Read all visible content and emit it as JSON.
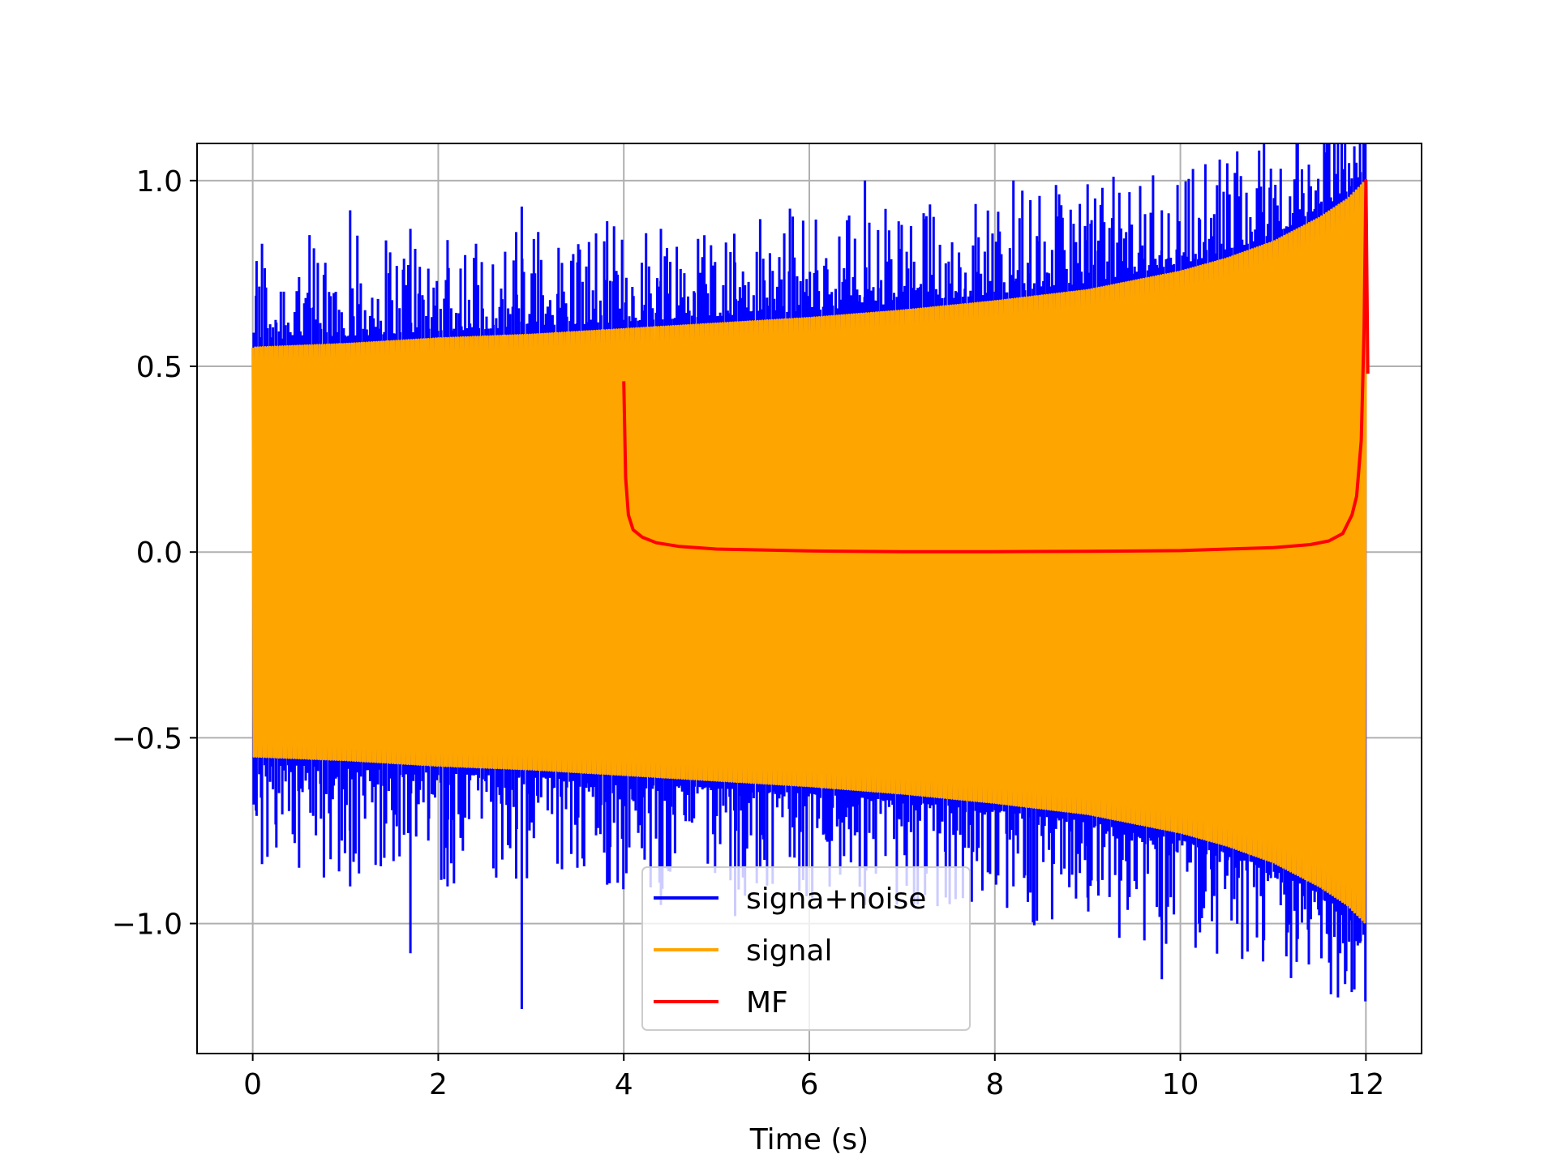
{
  "chart_data": {
    "type": "line",
    "title": "",
    "xlabel": "Time (s)",
    "ylabel": "",
    "xlim": [
      -0.6,
      12.6
    ],
    "ylim": [
      -1.35,
      1.1
    ],
    "xticks": [
      0,
      2,
      4,
      6,
      8,
      10,
      12
    ],
    "xtick_labels": [
      "0",
      "2",
      "4",
      "6",
      "8",
      "10",
      "12"
    ],
    "yticks": [
      -1.0,
      -0.5,
      0.0,
      0.5,
      1.0
    ],
    "ytick_labels": [
      "−1.0",
      "−0.5",
      "0.0",
      "0.5",
      "1.0"
    ],
    "grid": true,
    "legend_position": "lower-center",
    "series": [
      {
        "name": "signa+noise",
        "color": "#0000ff",
        "description": "signal with additive noise spikes from t=0 to t=12 s",
        "x_range": [
          0,
          12
        ],
        "spike_samples": [
          [
            0.1,
            0.83,
            -0.84
          ],
          [
            0.5,
            0.74,
            -0.85
          ],
          [
            1.05,
            0.92,
            -0.9
          ],
          [
            1.7,
            0.87,
            -1.08
          ],
          [
            2.1,
            0.84,
            -0.9
          ],
          [
            2.9,
            0.93,
            -1.23
          ],
          [
            3.5,
            0.78,
            -0.85
          ],
          [
            4.4,
            0.87,
            -0.95
          ],
          [
            5.2,
            0.78,
            -0.98
          ],
          [
            6.6,
            1.0,
            -0.95
          ],
          [
            8.2,
            1.0,
            -0.9
          ],
          [
            9.0,
            0.99,
            -0.93
          ],
          [
            9.8,
            0.92,
            -1.15
          ],
          [
            10.2,
            0.9,
            -1.0
          ],
          [
            11.6,
            0.88,
            -1.03
          ]
        ]
      },
      {
        "name": "signal",
        "color": "#ffa500",
        "description": "oscillating chirp whose envelope grows from 0.55 to 1.0",
        "x": [
          0,
          1,
          2,
          3,
          4,
          5,
          6,
          7,
          8,
          9,
          10,
          10.5,
          11,
          11.5,
          11.8,
          12
        ],
        "envelope": [
          0.55,
          0.56,
          0.575,
          0.585,
          0.6,
          0.615,
          0.63,
          0.65,
          0.675,
          0.705,
          0.755,
          0.79,
          0.835,
          0.9,
          0.95,
          1.0
        ]
      },
      {
        "name": "MF",
        "color": "#ff0000",
        "description": "matched filter output from t=4 to t=12 s",
        "x": [
          4.0,
          4.02,
          4.05,
          4.1,
          4.2,
          4.35,
          4.6,
          5.0,
          6.0,
          7.0,
          8.0,
          9.0,
          10.0,
          11.0,
          11.4,
          11.6,
          11.75,
          11.85,
          11.9,
          11.95,
          11.98,
          12.0,
          12.02
        ],
        "y": [
          0.46,
          0.2,
          0.1,
          0.06,
          0.04,
          0.025,
          0.015,
          0.008,
          0.003,
          0.001,
          0.001,
          0.002,
          0.004,
          0.012,
          0.02,
          0.03,
          0.05,
          0.1,
          0.15,
          0.3,
          0.6,
          1.0,
          0.48
        ]
      }
    ]
  }
}
